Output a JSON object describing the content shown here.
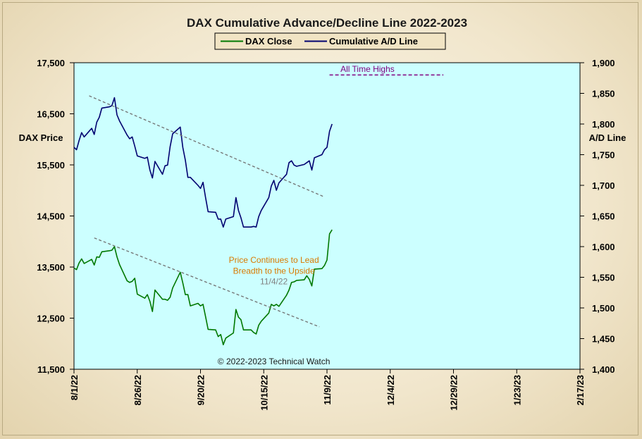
{
  "chart_data": {
    "type": "line",
    "title": "DAX Cumulative Advance/Decline Line 2022-2023",
    "ylabel_left": "DAX Price",
    "ylabel_right": "A/D Line",
    "x_tick_labels": [
      "8/1/22",
      "8/26/22",
      "9/20/22",
      "10/15/22",
      "11/9/22",
      "12/4/22",
      "12/29/22",
      "1/23/23",
      "2/17/23"
    ],
    "x_tick_dates": [
      "2022-08-01",
      "2022-08-26",
      "2022-09-20",
      "2022-10-15",
      "2022-11-09",
      "2022-12-04",
      "2022-12-29",
      "2023-01-23",
      "2023-02-17"
    ],
    "x_range": [
      "2022-08-01",
      "2023-02-17"
    ],
    "ylim_left": [
      11500,
      17500
    ],
    "ylim_right": [
      1400,
      1900
    ],
    "yticks_left": [
      "17,500",
      "16,500",
      "15,500",
      "14,500",
      "13,500",
      "12,500",
      "11,500"
    ],
    "yticks_left_values": [
      17500,
      16500,
      15500,
      14500,
      13500,
      12500,
      11500
    ],
    "yticks_right": [
      "1,900",
      "1,850",
      "1,800",
      "1,750",
      "1,700",
      "1,650",
      "1,600",
      "1,550",
      "1,500",
      "1,450",
      "1,400"
    ],
    "yticks_right_values": [
      1900,
      1850,
      1800,
      1750,
      1700,
      1650,
      1600,
      1550,
      1500,
      1450,
      1400
    ],
    "grid": false,
    "legend": {
      "placement": "top-center",
      "entries": [
        "DAX Close",
        "Cumulative A/D Line"
      ]
    },
    "series": [
      {
        "name": "DAX Close",
        "axis": "left",
        "color": "#007800",
        "x": [
          "2022-08-01",
          "2022-08-02",
          "2022-08-03",
          "2022-08-04",
          "2022-08-05",
          "2022-08-08",
          "2022-08-09",
          "2022-08-10",
          "2022-08-11",
          "2022-08-12",
          "2022-08-15",
          "2022-08-16",
          "2022-08-17",
          "2022-08-18",
          "2022-08-19",
          "2022-08-22",
          "2022-08-23",
          "2022-08-24",
          "2022-08-25",
          "2022-08-26",
          "2022-08-29",
          "2022-08-30",
          "2022-08-31",
          "2022-09-01",
          "2022-09-02",
          "2022-09-05",
          "2022-09-06",
          "2022-09-07",
          "2022-09-08",
          "2022-09-09",
          "2022-09-12",
          "2022-09-13",
          "2022-09-14",
          "2022-09-15",
          "2022-09-16",
          "2022-09-19",
          "2022-09-20",
          "2022-09-21",
          "2022-09-22",
          "2022-09-23",
          "2022-09-26",
          "2022-09-27",
          "2022-09-28",
          "2022-09-29",
          "2022-09-30",
          "2022-10-03",
          "2022-10-04",
          "2022-10-05",
          "2022-10-06",
          "2022-10-07",
          "2022-10-10",
          "2022-10-11",
          "2022-10-12",
          "2022-10-13",
          "2022-10-14",
          "2022-10-17",
          "2022-10-18",
          "2022-10-19",
          "2022-10-20",
          "2022-10-21",
          "2022-10-24",
          "2022-10-25",
          "2022-10-26",
          "2022-10-27",
          "2022-10-28",
          "2022-10-31",
          "2022-11-01",
          "2022-11-02",
          "2022-11-03",
          "2022-11-04",
          "2022-11-07",
          "2022-11-08",
          "2022-11-09",
          "2022-11-10",
          "2022-11-11"
        ],
        "values": [
          13480,
          13450,
          13580,
          13660,
          13570,
          13650,
          13540,
          13700,
          13690,
          13800,
          13820,
          13830,
          13900,
          13700,
          13550,
          13230,
          13200,
          13220,
          13280,
          12970,
          12890,
          12960,
          12830,
          12630,
          13050,
          12870,
          12870,
          12850,
          12910,
          13090,
          13400,
          13190,
          12960,
          12960,
          12740,
          12790,
          12740,
          12770,
          12530,
          12280,
          12270,
          12140,
          12180,
          11980,
          12110,
          12210,
          12670,
          12520,
          12470,
          12270,
          12270,
          12220,
          12190,
          12360,
          12440,
          12600,
          12770,
          12740,
          12770,
          12730,
          12950,
          13050,
          13200,
          13210,
          13240,
          13250,
          13330,
          13260,
          13130,
          13460,
          13470,
          13530,
          13640,
          14150,
          14230
        ]
      },
      {
        "name": "Cumulative A/D Line",
        "axis": "right",
        "color": "#000070",
        "x": [
          "2022-08-01",
          "2022-08-02",
          "2022-08-03",
          "2022-08-04",
          "2022-08-05",
          "2022-08-08",
          "2022-08-09",
          "2022-08-10",
          "2022-08-11",
          "2022-08-12",
          "2022-08-15",
          "2022-08-16",
          "2022-08-17",
          "2022-08-18",
          "2022-08-19",
          "2022-08-22",
          "2022-08-23",
          "2022-08-24",
          "2022-08-25",
          "2022-08-26",
          "2022-08-29",
          "2022-08-30",
          "2022-08-31",
          "2022-09-01",
          "2022-09-02",
          "2022-09-05",
          "2022-09-06",
          "2022-09-07",
          "2022-09-08",
          "2022-09-09",
          "2022-09-12",
          "2022-09-13",
          "2022-09-14",
          "2022-09-15",
          "2022-09-16",
          "2022-09-19",
          "2022-09-20",
          "2022-09-21",
          "2022-09-22",
          "2022-09-23",
          "2022-09-26",
          "2022-09-27",
          "2022-09-28",
          "2022-09-29",
          "2022-09-30",
          "2022-10-03",
          "2022-10-04",
          "2022-10-05",
          "2022-10-06",
          "2022-10-07",
          "2022-10-10",
          "2022-10-11",
          "2022-10-12",
          "2022-10-13",
          "2022-10-14",
          "2022-10-17",
          "2022-10-18",
          "2022-10-19",
          "2022-10-20",
          "2022-10-21",
          "2022-10-24",
          "2022-10-25",
          "2022-10-26",
          "2022-10-27",
          "2022-10-28",
          "2022-10-31",
          "2022-11-01",
          "2022-11-02",
          "2022-11-03",
          "2022-11-04",
          "2022-11-07",
          "2022-11-08",
          "2022-11-09",
          "2022-11-10",
          "2022-11-11"
        ],
        "values": [
          1762,
          1758,
          1773,
          1786,
          1779,
          1793,
          1783,
          1803,
          1811,
          1826,
          1828,
          1830,
          1843,
          1815,
          1805,
          1782,
          1776,
          1779,
          1764,
          1748,
          1744,
          1746,
          1725,
          1712,
          1739,
          1718,
          1732,
          1733,
          1763,
          1784,
          1795,
          1762,
          1741,
          1713,
          1713,
          1700,
          1695,
          1705,
          1680,
          1657,
          1656,
          1645,
          1645,
          1632,
          1645,
          1649,
          1680,
          1659,
          1647,
          1632,
          1632,
          1633,
          1632,
          1649,
          1659,
          1680,
          1699,
          1708,
          1692,
          1704,
          1718,
          1737,
          1740,
          1733,
          1731,
          1734,
          1737,
          1740,
          1725,
          1745,
          1750,
          1758,
          1762,
          1788,
          1800
        ]
      }
    ],
    "trendlines": [
      {
        "axis": "right",
        "x": [
          "2022-08-07",
          "2022-11-08"
        ],
        "y": [
          1846,
          1681
        ],
        "color": "#707070",
        "style": "dashed"
      },
      {
        "axis": "left",
        "x": [
          "2022-08-09",
          "2022-11-06"
        ],
        "y": [
          14070,
          12330
        ],
        "color": "#707070",
        "style": "dashed"
      }
    ],
    "reference_lines": [
      {
        "axis": "right",
        "x": [
          "2022-11-10",
          "2022-12-25"
        ],
        "y": 1880,
        "color": "#800080",
        "style": "dashed"
      }
    ],
    "annotations": [
      {
        "text": "All Time Highs",
        "color": "#800080",
        "x": "2022-11-25",
        "axis": "right",
        "y": 1885
      },
      {
        "text": "Price Continues to Lead",
        "color": "#d97a00",
        "x": "2022-10-19",
        "axis": "left",
        "y": 13580
      },
      {
        "text": "Breadth to the Upside",
        "color": "#d97a00",
        "x": "2022-10-19",
        "axis": "left",
        "y": 13370
      },
      {
        "text": "11/4/22",
        "color": "#808080",
        "x": "2022-10-19",
        "axis": "left",
        "y": 13160
      },
      {
        "text": "© 2022-2023  Technical  Watch",
        "color": "#1a1a1a",
        "x": "2022-10-19",
        "axis": "left",
        "y": 11600
      }
    ],
    "colors": {
      "plot_background": "#ccffff",
      "page_background": "#f4ecd8"
    }
  }
}
